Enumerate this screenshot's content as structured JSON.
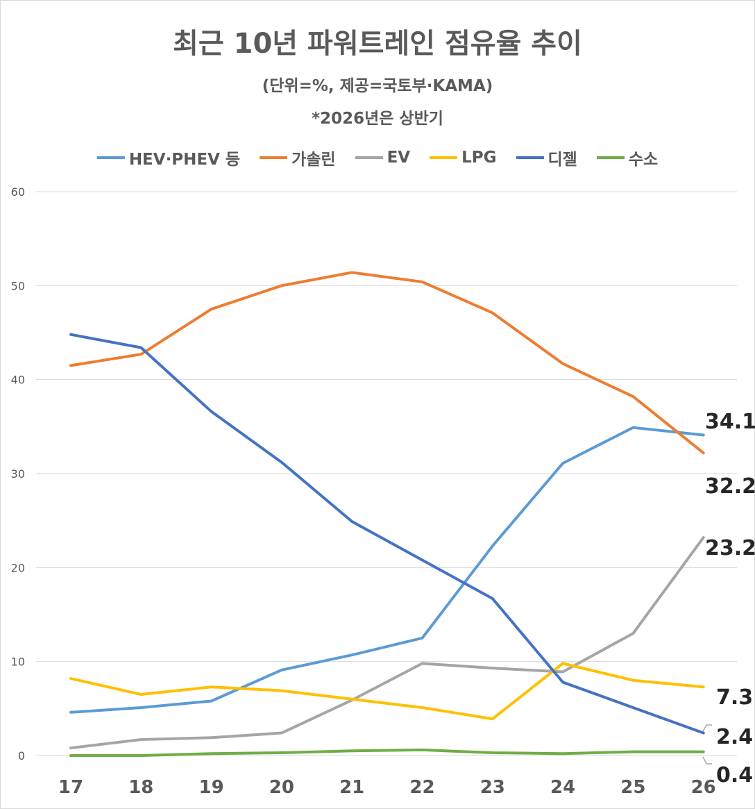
{
  "chart_data": {
    "type": "line",
    "title": "최근 10년 파워트레인 점유율 추이",
    "subtitle": "(단위=%, 제공=국토부·KAMA)",
    "note": "*2026년은 상반기",
    "x": [
      "17",
      "18",
      "19",
      "20",
      "21",
      "22",
      "23",
      "24",
      "25",
      "26"
    ],
    "ylim": [
      0,
      60
    ],
    "yticks": [
      "0",
      "10",
      "20",
      "30",
      "40",
      "50",
      "60"
    ],
    "grid": true,
    "legend_position": "top",
    "series": [
      {
        "name": "HEV·PHEV 등",
        "color": "#5b9bd5",
        "values": [
          4.6,
          5.1,
          5.8,
          9.1,
          10.7,
          12.5,
          22.3,
          31.1,
          34.9,
          34.1
        ],
        "end_label": "34.1"
      },
      {
        "name": "가솔린",
        "color": "#ed7d31",
        "values": [
          41.5,
          42.7,
          47.5,
          50.0,
          51.4,
          50.4,
          47.1,
          41.7,
          38.2,
          32.2
        ],
        "end_label": "32.2"
      },
      {
        "name": "EV",
        "color": "#a5a5a5",
        "values": [
          0.8,
          1.7,
          1.9,
          2.4,
          5.9,
          9.8,
          9.3,
          8.9,
          13.0,
          23.2
        ],
        "end_label": "23.2"
      },
      {
        "name": "LPG",
        "color": "#ffc000",
        "values": [
          8.2,
          6.5,
          7.3,
          6.9,
          6.0,
          5.1,
          3.9,
          9.8,
          8.0,
          7.3
        ],
        "end_label": "7.3"
      },
      {
        "name": "디젤",
        "color": "#4472c4",
        "values": [
          44.8,
          43.4,
          36.6,
          31.2,
          24.9,
          20.8,
          16.7,
          7.8,
          5.1,
          2.4
        ],
        "end_label": "2.4"
      },
      {
        "name": "수소",
        "color": "#70ad47",
        "values": [
          0.0,
          0.0,
          0.2,
          0.3,
          0.5,
          0.6,
          0.3,
          0.2,
          0.4,
          0.4
        ],
        "end_label": "0.4"
      }
    ]
  }
}
